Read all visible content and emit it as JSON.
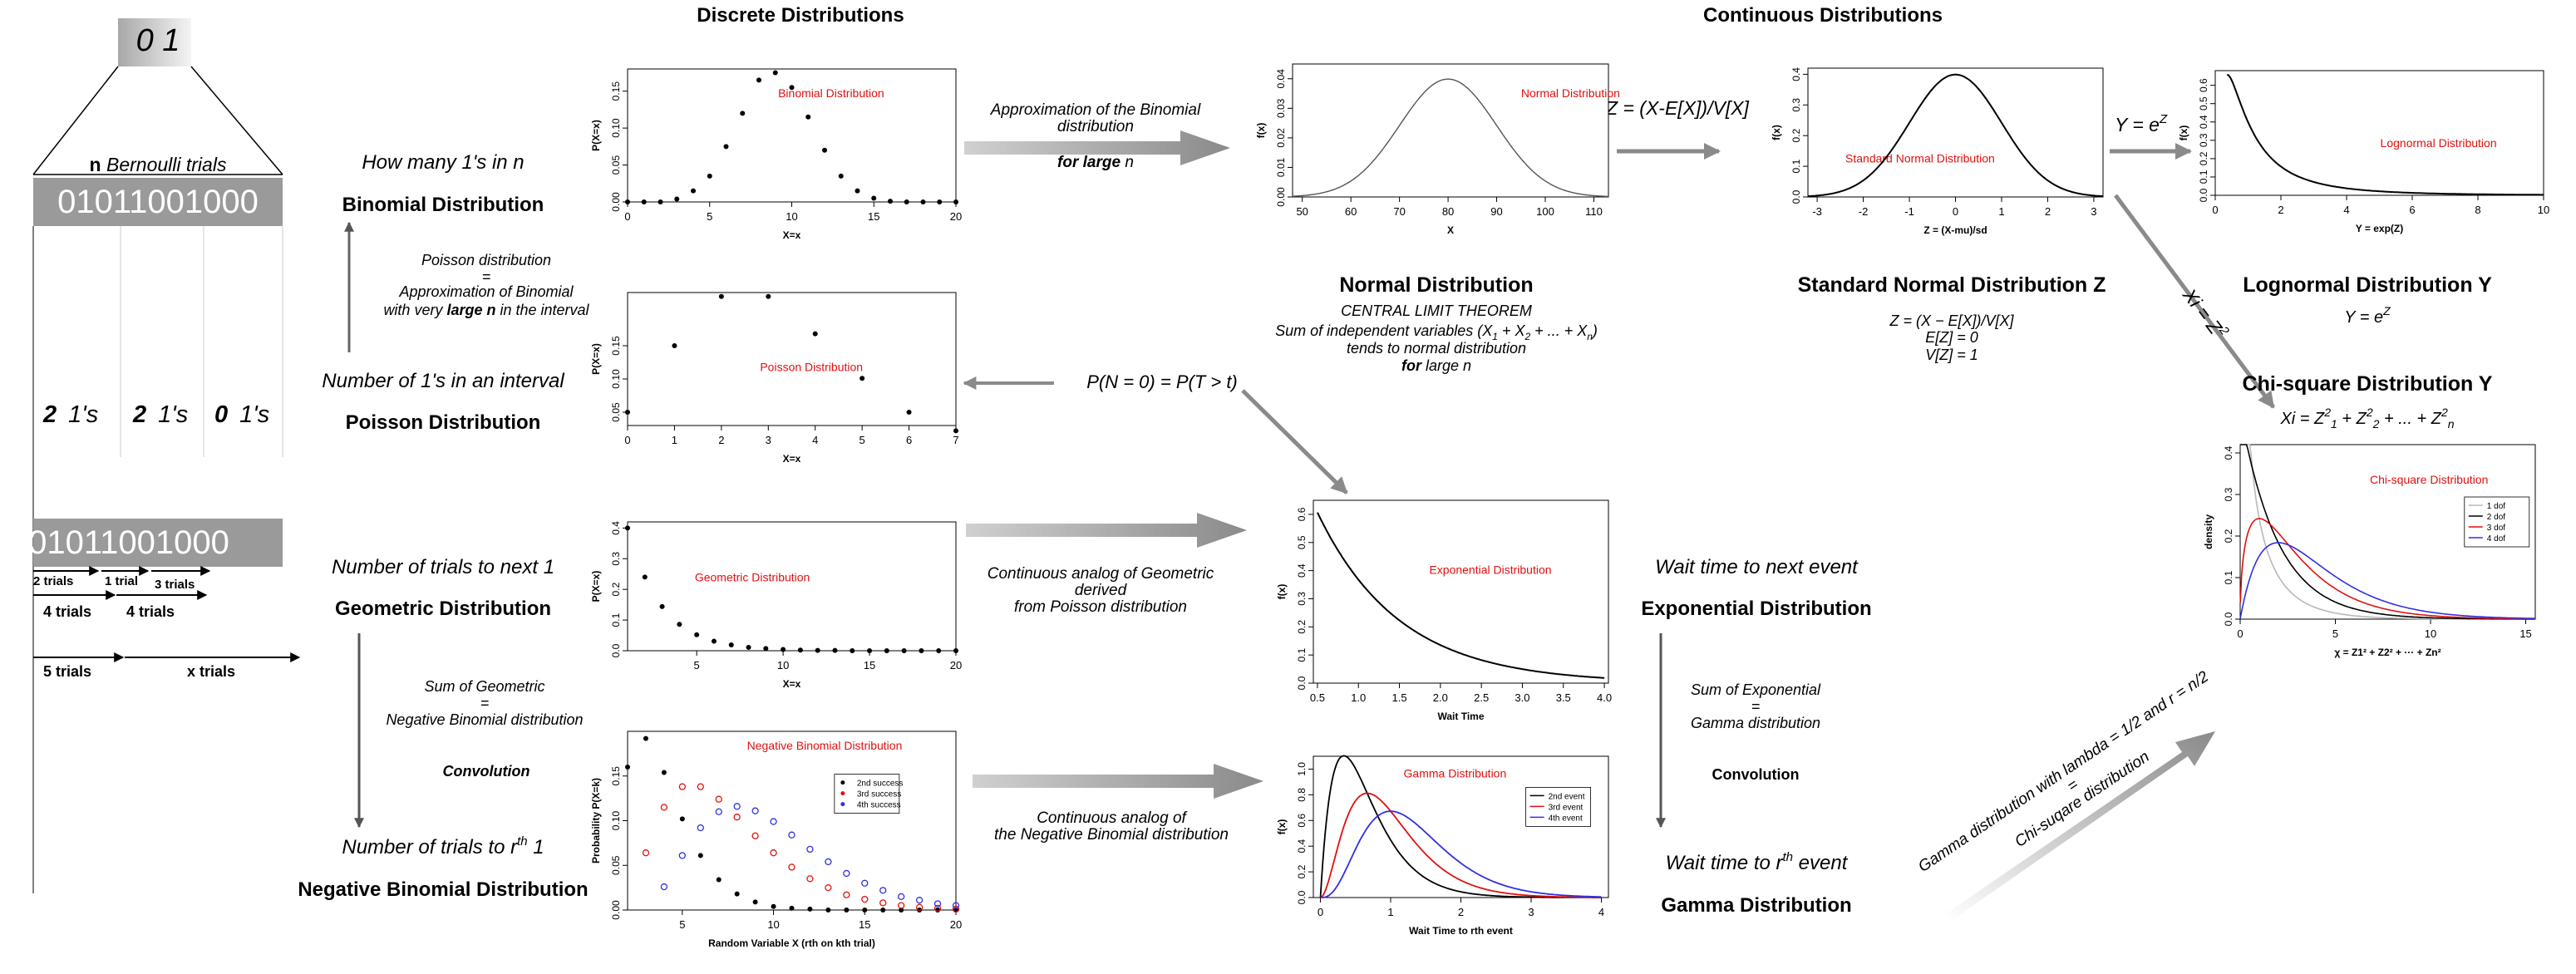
{
  "headings": {
    "discrete": "Discrete Distributions",
    "continuous": "Continuous Distributions"
  },
  "left_panel": {
    "coin": "0 1",
    "bernoulli_n": "n",
    "bernoulli_rest": " Bernoulli trials",
    "seq1": "01011001000",
    "count1": "2",
    "unit1": "1's",
    "count2": "2",
    "unit2": "1's",
    "count3": "0",
    "unit3": "1's",
    "seq2": "01011001000",
    "l_2trials": "2 trials",
    "l_1trial": "1 trial",
    "l_3trials": "3 trials",
    "l_4trials_a": "4 trials",
    "l_4trials_b": "4 trials",
    "l_5trials": "5 trials",
    "l_xtrials": "x trials"
  },
  "labels": {
    "how_many": "How many 1's in n",
    "binomial": "Binomial Distribution",
    "poisson_note_1": "Poisson distribution",
    "poisson_note_2": "=",
    "poisson_note_3": "Approximation of Binomial",
    "poisson_note_4a": "with very ",
    "poisson_note_4b": "large n",
    "poisson_note_4c": " in the interval",
    "num_interval": "Number of 1's in an interval",
    "poisson": "Poisson Distribution",
    "trials_next": "Number of trials to next 1",
    "geometric": "Geometric Distribution",
    "sum_geo_1": "Sum of Geometric",
    "sum_geo_2": "=",
    "sum_geo_3": "Negative Binomial distribution",
    "convolution_1": "Convolution",
    "trials_r": "Number of trials to r",
    "trials_r_sup": "th",
    "trials_r_end": " 1",
    "negbin": "Negative Binomial Distribution",
    "approx_1": "Approximation of the Binomial",
    "approx_2": "distribution",
    "approx_3a": "for large",
    "approx_3b": " n",
    "normal": "Normal Distribution",
    "clt_1": "CENTRAL LIMIT THEOREM",
    "clt_2": "Sum of independent variables (X",
    "clt_3": "tends to normal distribution",
    "clt_4a": "for",
    "clt_4b": " large n",
    "pn0": "P(N = 0) = P(T > t)",
    "cont_geo_1": "Continuous analog of Geometric",
    "cont_geo_2": "derived",
    "cont_geo_3": "from Poisson distribution",
    "cont_nb_1": "Continuous analog of",
    "cont_nb_2": "the Negative Binomial distribution",
    "z_formula": "Z = (X-E[X])/V[X]",
    "std_normal": "Standard Normal Distribution Z",
    "z_f1": "Z = (X − E[X])/V[X]",
    "z_f2": "E[Z] = 0",
    "z_f3": "V[Z] = 1",
    "y_ez": "Y = e",
    "y_ez_sup": "Z",
    "lognormal": "Lognormal Distribution Y",
    "lognormal_f": "Y = e",
    "lognormal_f_sup": "Z",
    "xi_z2": "Xi = Z",
    "xi_z2_sup": "2",
    "chisq": "Chi-square Distribution Y",
    "chisq_f": "Xi = Z",
    "wait_next": "Wait time to next event",
    "exponential": "Exponential Distribution",
    "sum_exp_1": "Sum of Exponential",
    "sum_exp_2": "=",
    "sum_exp_3": "Gamma distribution",
    "convolution_2": "Convolution",
    "wait_r": "Wait time to r",
    "wait_r_sup": "th",
    "wait_r_end": " event",
    "gamma": "Gamma Distribution",
    "gamma_chi_1": "Gamma distribution with lambda = 1/2 and r = n/2",
    "gamma_chi_2": "=",
    "gamma_chi_3": "Chi-suqare distribution"
  },
  "chart_data": [
    {
      "id": "binomial",
      "type": "scatter",
      "title": "Binomial Distribution",
      "xlabel": "X=x",
      "ylabel": "P(X=x)",
      "xlim": [
        0,
        20
      ],
      "ylim": [
        0,
        0.18
      ],
      "xticks": [
        "0",
        "5",
        "10",
        "15",
        "20"
      ],
      "yticks": [
        "0.00",
        "0.05",
        "0.10",
        "0.15"
      ],
      "x": [
        0,
        1,
        2,
        3,
        4,
        5,
        6,
        7,
        8,
        9,
        10,
        11,
        12,
        13,
        14,
        15,
        16,
        17,
        18,
        19,
        20
      ],
      "y": [
        0.0,
        0.0,
        0.0,
        0.004,
        0.015,
        0.035,
        0.075,
        0.12,
        0.165,
        0.175,
        0.155,
        0.115,
        0.07,
        0.035,
        0.015,
        0.005,
        0.001,
        0.0,
        0.0,
        0.0,
        0.0
      ]
    },
    {
      "id": "poisson",
      "type": "scatter",
      "title": "Poisson Distribution",
      "xlabel": "X=x",
      "ylabel": "P(X=x)",
      "xlim": [
        0,
        7
      ],
      "ylim": [
        0.03,
        0.23
      ],
      "xticks": [
        "0",
        "1",
        "2",
        "3",
        "4",
        "5",
        "6",
        "7"
      ],
      "yticks": [
        "0.05",
        "0.10",
        "0.15"
      ],
      "x": [
        0,
        1,
        2,
        3,
        4,
        5,
        6,
        7
      ],
      "y": [
        0.05,
        0.15,
        0.224,
        0.224,
        0.168,
        0.101,
        0.05,
        0.022
      ]
    },
    {
      "id": "geometric",
      "type": "scatter",
      "title": "Geometric Distribution",
      "xlabel": "X=x",
      "ylabel": "P(X=x)",
      "xlim": [
        1,
        20
      ],
      "ylim": [
        0,
        0.42
      ],
      "xticks": [
        "5",
        "10",
        "15",
        "20"
      ],
      "yticks": [
        "0.0",
        "0.1",
        "0.2",
        "0.3",
        "0.4"
      ],
      "x": [
        1,
        2,
        3,
        4,
        5,
        6,
        7,
        8,
        9,
        10,
        11,
        12,
        13,
        14,
        15,
        16,
        17,
        18,
        19,
        20
      ],
      "y": [
        0.4,
        0.24,
        0.144,
        0.086,
        0.052,
        0.031,
        0.019,
        0.011,
        0.007,
        0.004,
        0.002,
        0.001,
        0.001,
        0.0,
        0.0,
        0.0,
        0.0,
        0.0,
        0.0,
        0.0
      ]
    },
    {
      "id": "negbin",
      "type": "scatter",
      "title": "Negative Binomial Distribution",
      "xlabel": "Random Variable X (rth on kth trial)",
      "ylabel": "Probability P(X=k)",
      "xlim": [
        2,
        20
      ],
      "ylim": [
        0,
        0.2
      ],
      "xticks": [
        "5",
        "10",
        "15",
        "20"
      ],
      "yticks": [
        "0.00",
        "0.05",
        "0.10",
        "0.15"
      ],
      "legend": [
        "2nd success",
        "3rd success",
        "4th success"
      ],
      "series": [
        {
          "name": "2nd success",
          "color": "#000000",
          "x": [
            2,
            3,
            4,
            5,
            6,
            7,
            8,
            9,
            10,
            11,
            12,
            13,
            14,
            15,
            16,
            17,
            18,
            19,
            20
          ],
          "y": [
            0.16,
            0.192,
            0.154,
            0.102,
            0.061,
            0.034,
            0.018,
            0.009,
            0.004,
            0.002,
            0.001,
            0.0,
            0.0,
            0.0,
            0.0,
            0.0,
            0.0,
            0.0,
            0.0
          ]
        },
        {
          "name": "3rd success",
          "color": "#e01010",
          "x": [
            3,
            4,
            5,
            6,
            7,
            8,
            9,
            10,
            11,
            12,
            13,
            14,
            15,
            16,
            17,
            18,
            19,
            20
          ],
          "y": [
            0.064,
            0.115,
            0.138,
            0.138,
            0.124,
            0.104,
            0.083,
            0.064,
            0.048,
            0.035,
            0.025,
            0.017,
            0.012,
            0.008,
            0.005,
            0.003,
            0.002,
            0.001
          ]
        },
        {
          "name": "4th success",
          "color": "#3030e0",
          "x": [
            4,
            5,
            6,
            7,
            8,
            9,
            10,
            11,
            12,
            13,
            14,
            15,
            16,
            17,
            18,
            19,
            20
          ],
          "y": [
            0.026,
            0.061,
            0.092,
            0.11,
            0.116,
            0.111,
            0.099,
            0.084,
            0.068,
            0.054,
            0.041,
            0.03,
            0.022,
            0.015,
            0.011,
            0.007,
            0.005
          ]
        }
      ]
    },
    {
      "id": "normal",
      "type": "line",
      "title": "Normal Distribution",
      "xlabel": "X",
      "ylabel": "f(x)",
      "xlim": [
        48,
        113
      ],
      "ylim": [
        0,
        0.045
      ],
      "xticks": [
        "50",
        "60",
        "70",
        "80",
        "90",
        "100",
        "110"
      ],
      "yticks": [
        "0.00",
        "0.01",
        "0.02",
        "0.03",
        "0.04"
      ],
      "mean": 80,
      "sd": 10
    },
    {
      "id": "stdnormal",
      "type": "line",
      "title": "Standard Normal Distribution",
      "xlabel": "Z = (X-mu)/sd",
      "ylabel": "f(x)",
      "xlim": [
        -3.2,
        3.2
      ],
      "ylim": [
        0,
        0.42
      ],
      "xticks": [
        "-3",
        "-2",
        "-1",
        "0",
        "1",
        "2",
        "3"
      ],
      "yticks": [
        "0.0",
        "0.1",
        "0.2",
        "0.3",
        "0.4"
      ],
      "mean": 0,
      "sd": 1
    },
    {
      "id": "lognormal",
      "type": "line",
      "title": "Lognormal Distribution",
      "xlabel": "Y = exp(Z)",
      "ylabel": "f(x)",
      "xlim": [
        0,
        10
      ],
      "ylim": [
        0,
        0.68
      ],
      "xticks": [
        "0",
        "2",
        "4",
        "6",
        "8",
        "10"
      ],
      "yticks": [
        "0.0",
        "0.1",
        "0.2",
        "0.3",
        "0.4",
        "0.5",
        "0.6"
      ]
    },
    {
      "id": "exponential",
      "type": "line",
      "title": "Exponential Distribution",
      "xlabel": "Wait Time",
      "ylabel": "f(x)",
      "xlim": [
        0.45,
        4.05
      ],
      "ylim": [
        0,
        0.65
      ],
      "xticks": [
        "0.5",
        "1.0",
        "1.5",
        "2.0",
        "2.5",
        "3.0",
        "3.5",
        "4.0"
      ],
      "yticks": [
        "0.0",
        "0.1",
        "0.2",
        "0.3",
        "0.4",
        "0.5",
        "0.6"
      ],
      "rate": 1
    },
    {
      "id": "gamma",
      "type": "line",
      "title": "Gamma Distribution",
      "xlabel": "Wait Time to rth event",
      "ylabel": "f(x)",
      "xlim": [
        -0.1,
        4.1
      ],
      "ylim": [
        0,
        1.1
      ],
      "xticks": [
        "0",
        "1",
        "2",
        "3",
        "4"
      ],
      "yticks": [
        "0.0",
        "0.2",
        "0.4",
        "0.6",
        "0.8",
        "1.0"
      ],
      "legend": [
        "2nd event",
        "3rd event",
        "4th event"
      ],
      "series": [
        {
          "name": "2nd event",
          "color": "#000000",
          "shape": 2,
          "rate": 3
        },
        {
          "name": "3rd event",
          "color": "#e01010",
          "shape": 3,
          "rate": 3
        },
        {
          "name": "4th event",
          "color": "#3030e0",
          "shape": 4,
          "rate": 3
        }
      ]
    },
    {
      "id": "chisq",
      "type": "line",
      "title": "Chi-square Distribution",
      "xlabel": "χ = Z1² + Z2² + ··· + Zn²",
      "ylabel": "density",
      "xlim": [
        0,
        15.5
      ],
      "ylim": [
        0,
        0.42
      ],
      "xticks": [
        "0",
        "5",
        "10",
        "15"
      ],
      "yticks": [
        "0.0",
        "0.1",
        "0.2",
        "0.3",
        "0.4"
      ],
      "legend": [
        "1 dof",
        "2 dof",
        "3 dof",
        "4 dof"
      ],
      "series": [
        {
          "name": "1 dof",
          "color": "#b8b8b8",
          "k": 1
        },
        {
          "name": "2 dof",
          "color": "#000000",
          "k": 2
        },
        {
          "name": "3 dof",
          "color": "#e01010",
          "k": 3
        },
        {
          "name": "4 dof",
          "color": "#3030e0",
          "k": 4
        }
      ]
    }
  ]
}
